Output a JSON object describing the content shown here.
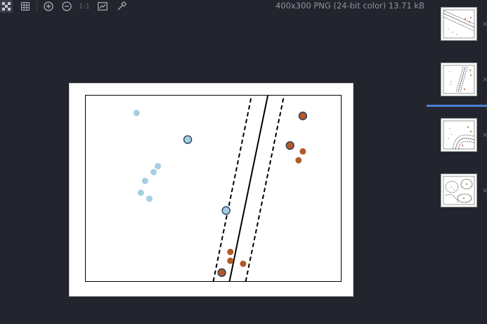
{
  "toolbar": {
    "buttons": [
      {
        "name": "checkerboard-icon",
        "active": true
      },
      {
        "name": "grid-icon",
        "active": false
      },
      {
        "name": "zoom-in-icon",
        "active": false
      },
      {
        "name": "zoom-out-icon",
        "active": false
      },
      {
        "name": "actual-size-icon",
        "active": false
      },
      {
        "name": "fit-window-icon",
        "active": false
      },
      {
        "name": "color-picker-icon",
        "active": false
      }
    ],
    "actual_size_label": "1:1"
  },
  "image_info": "400x300 PNG (24-bit color) 13.71 kB",
  "image": {
    "kind": "svm-decision-boundary-plot",
    "colors": {
      "class_a": "#a6cee3",
      "class_b": "#b15928",
      "support_vector_edge": "#1f3a5a",
      "line": "#000000"
    },
    "points_class_a": [
      [
        -1.8,
        2.4
      ],
      [
        -0.6,
        1.5
      ],
      [
        -1.3,
        0.6
      ],
      [
        -1.4,
        0.4
      ],
      [
        -1.6,
        0.1
      ],
      [
        -1.7,
        -0.3
      ],
      [
        -1.5,
        -0.5
      ],
      [
        0.3,
        -0.9
      ]
    ],
    "support_vectors_a": [
      1,
      7
    ],
    "points_class_b": [
      [
        2.1,
        2.3
      ],
      [
        1.8,
        1.3
      ],
      [
        2.1,
        1.1
      ],
      [
        2.0,
        0.8
      ],
      [
        0.4,
        -2.3
      ],
      [
        0.4,
        -2.6
      ],
      [
        0.7,
        -2.7
      ],
      [
        0.2,
        -3.0
      ]
    ],
    "support_vectors_b": [
      0,
      1,
      7
    ]
  },
  "thumbnails": [
    {
      "name": "thumb-1",
      "selected": false,
      "variant": "linear-dense"
    },
    {
      "name": "thumb-2",
      "selected": true,
      "variant": "linear"
    },
    {
      "name": "thumb-3",
      "selected": false,
      "variant": "poly"
    },
    {
      "name": "thumb-4",
      "selected": false,
      "variant": "rbf"
    }
  ],
  "thumb_close_glyph": "×"
}
